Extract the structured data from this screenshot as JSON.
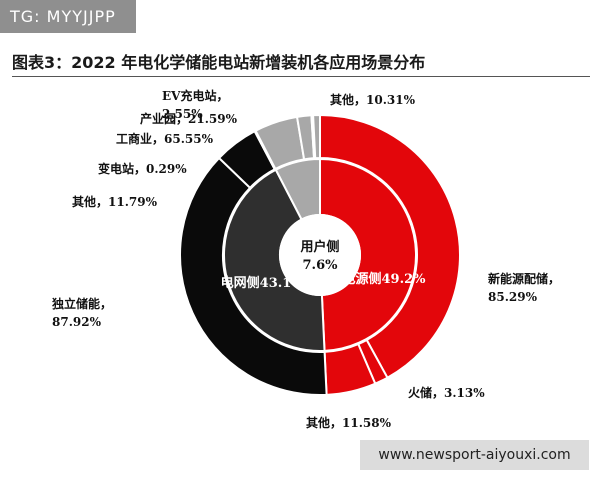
{
  "watermark": "TG: MYYJJPP",
  "url_banner": "www.newsport-aiyouxi.com",
  "chart_data": {
    "type": "pie",
    "title": "图表3：2022 年电化学储能电站新增装机各应用场景分布",
    "inner_ring": {
      "name": "",
      "slices": [
        {
          "label": "电源侧",
          "value": 49.2,
          "text": "电源侧49.2%",
          "color": "#e3060b"
        },
        {
          "label": "电网侧",
          "value": 43.1,
          "text": "电网侧43.1",
          "color": "#2f2f2f"
        },
        {
          "label": "用户侧",
          "value": 7.6,
          "text": "",
          "color": "#a8a8a8"
        }
      ]
    },
    "outer_ring": {
      "slices": [
        {
          "parent": "电源侧",
          "label": "新能源配储",
          "value": 85.29,
          "text": "新能源配储，\n85.29%",
          "color": "#e3060b"
        },
        {
          "parent": "电源侧",
          "label": "火储",
          "value": 3.13,
          "text": "火储，3.13%",
          "color": "#e3060b"
        },
        {
          "parent": "电源侧",
          "label": "其他",
          "value": 11.58,
          "text": "其他，11.58%",
          "color": "#e3060b"
        },
        {
          "parent": "电网侧",
          "label": "独立储能",
          "value": 87.92,
          "text": "独立储能，\n87.92%",
          "color": "#0a0a0a"
        },
        {
          "parent": "电网侧",
          "label": "其他",
          "value": 11.79,
          "text": "其他，11.79%",
          "color": "#0a0a0a"
        },
        {
          "parent": "电网侧",
          "label": "变电站",
          "value": 0.29,
          "text": "变电站，0.29%",
          "color": "#0a0a0a"
        },
        {
          "parent": "用户侧",
          "label": "工商业",
          "value": 65.55,
          "text": "工商业，65.55%",
          "color": "#a8a8a8"
        },
        {
          "parent": "用户侧",
          "label": "产业园",
          "value": 21.59,
          "text": "产业园，21.59%",
          "color": "#a8a8a8"
        },
        {
          "parent": "用户侧",
          "label": "EV充电站",
          "value": 2.55,
          "text": "EV充电站，\n2.55%",
          "color": "#a8a8a8"
        },
        {
          "parent": "用户侧",
          "label": "其他",
          "value": 10.31,
          "text": "其他，10.31%",
          "color": "#a8a8a8"
        }
      ]
    },
    "center_label": {
      "line1": "用户侧",
      "line2": "7.6%"
    },
    "legend": "none",
    "grid": false
  }
}
